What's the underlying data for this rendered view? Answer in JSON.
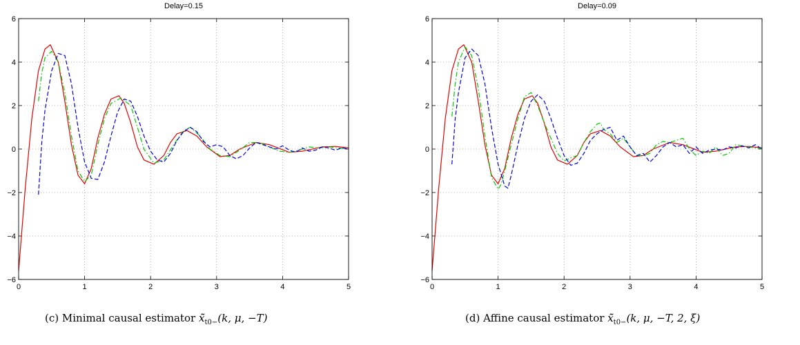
{
  "chart_data": [
    {
      "type": "line",
      "title": "Delay=0.15",
      "caption": {
        "label": "(c) Minimal causal estimator",
        "formula": "x̃̃",
        "subscript": "t0−",
        "args": "(k, μ, −T)"
      },
      "xlim": [
        0,
        5
      ],
      "ylim": [
        -6,
        6
      ],
      "xticks": [
        "0",
        "1",
        "2",
        "3",
        "4",
        "5"
      ],
      "yticks": [
        "−6",
        "−4",
        "−2",
        "0",
        "2",
        "4",
        "6"
      ],
      "grid": true,
      "series": [
        {
          "style": "solid",
          "color": "#e00000",
          "x": [
            0,
            0.1,
            0.2,
            0.3,
            0.4,
            0.48,
            0.6,
            0.7,
            0.8,
            0.9,
            1.0,
            1.1,
            1.2,
            1.3,
            1.4,
            1.52,
            1.6,
            1.7,
            1.8,
            1.9,
            2.05,
            2.2,
            2.3,
            2.4,
            2.55,
            2.7,
            2.85,
            3.05,
            3.2,
            3.35,
            3.6,
            3.8,
            4.1,
            4.3,
            4.6,
            4.8,
            5.0
          ],
          "y": [
            -5.6,
            -1.8,
            1.4,
            3.6,
            4.6,
            4.8,
            4.0,
            2.2,
            0.2,
            -1.2,
            -1.6,
            -0.9,
            0.5,
            1.6,
            2.3,
            2.45,
            2.1,
            1.2,
            0.1,
            -0.5,
            -0.7,
            -0.3,
            0.3,
            0.7,
            0.85,
            0.6,
            0.1,
            -0.35,
            -0.3,
            0.0,
            0.3,
            0.2,
            -0.15,
            -0.1,
            0.1,
            0.12,
            0.05
          ]
        },
        {
          "style": "dashdot",
          "color": "#00c800",
          "x": [
            0.3,
            0.35,
            0.4,
            0.5,
            0.6,
            0.7,
            0.8,
            0.9,
            1.0,
            1.1,
            1.2,
            1.3,
            1.4,
            1.55,
            1.7,
            1.8,
            1.9,
            2.05,
            2.2,
            2.35,
            2.5,
            2.6,
            2.75,
            2.9,
            3.05,
            3.2,
            3.35,
            3.5,
            3.65,
            3.8,
            3.95,
            4.1,
            4.25,
            4.4,
            4.55,
            4.7,
            4.85,
            5.0
          ],
          "y": [
            2.2,
            3.5,
            4.2,
            4.5,
            4.0,
            2.6,
            0.6,
            -1.0,
            -1.5,
            -1.2,
            0.2,
            1.4,
            2.1,
            2.35,
            2.0,
            1.0,
            0.0,
            -0.65,
            -0.5,
            0.2,
            0.85,
            1.0,
            0.6,
            0.0,
            -0.3,
            -0.35,
            -0.05,
            0.3,
            0.3,
            0.1,
            -0.1,
            -0.15,
            -0.05,
            0.1,
            0.05,
            0.1,
            0.05,
            0.0
          ]
        },
        {
          "style": "dashed",
          "color": "#0000e0",
          "x": [
            0.3,
            0.35,
            0.4,
            0.5,
            0.6,
            0.7,
            0.8,
            0.9,
            1.0,
            1.1,
            1.2,
            1.3,
            1.4,
            1.5,
            1.6,
            1.7,
            1.8,
            1.9,
            2.0,
            2.1,
            2.2,
            2.3,
            2.4,
            2.5,
            2.6,
            2.7,
            2.8,
            2.9,
            3.0,
            3.1,
            3.2,
            3.3,
            3.4,
            3.5,
            3.6,
            3.7,
            3.8,
            3.9,
            4.0,
            4.1,
            4.2,
            4.3,
            4.4,
            4.5,
            4.6,
            4.7,
            4.8,
            4.9,
            5.0
          ],
          "y": [
            -2.1,
            0.3,
            1.8,
            3.6,
            4.4,
            4.3,
            3.0,
            1.0,
            -0.6,
            -1.35,
            -1.4,
            -0.6,
            0.6,
            1.7,
            2.3,
            2.2,
            1.5,
            0.6,
            -0.1,
            -0.5,
            -0.6,
            -0.2,
            0.4,
            0.8,
            1.0,
            0.8,
            0.35,
            0.1,
            0.2,
            0.1,
            -0.3,
            -0.45,
            -0.3,
            0.05,
            0.3,
            0.2,
            0.1,
            0.0,
            0.15,
            -0.05,
            -0.15,
            0.05,
            -0.1,
            -0.05,
            0.1,
            0.05,
            -0.05,
            0.05,
            0.0
          ]
        }
      ]
    },
    {
      "type": "line",
      "title": "Delay=0.09",
      "caption": {
        "label": "(d) Affine causal estimator",
        "formula": "x̃̃",
        "subscript": "t0−",
        "args": "(k, μ, −T, 2, ξ)"
      },
      "xlim": [
        0,
        5
      ],
      "ylim": [
        -6,
        6
      ],
      "xticks": [
        "0",
        "1",
        "2",
        "3",
        "4",
        "5"
      ],
      "yticks": [
        "−6",
        "−4",
        "−2",
        "0",
        "2",
        "4",
        "6"
      ],
      "grid": true,
      "series": [
        {
          "style": "solid",
          "color": "#e00000",
          "x": [
            0,
            0.1,
            0.2,
            0.3,
            0.4,
            0.48,
            0.6,
            0.7,
            0.8,
            0.9,
            1.0,
            1.1,
            1.2,
            1.3,
            1.4,
            1.52,
            1.6,
            1.7,
            1.8,
            1.9,
            2.05,
            2.2,
            2.3,
            2.4,
            2.55,
            2.7,
            2.85,
            3.05,
            3.2,
            3.35,
            3.6,
            3.8,
            4.1,
            4.3,
            4.6,
            4.8,
            5.0
          ],
          "y": [
            -5.6,
            -1.8,
            1.4,
            3.6,
            4.6,
            4.8,
            4.0,
            2.2,
            0.2,
            -1.2,
            -1.6,
            -0.9,
            0.5,
            1.6,
            2.3,
            2.45,
            2.1,
            1.2,
            0.1,
            -0.5,
            -0.7,
            -0.3,
            0.3,
            0.7,
            0.85,
            0.6,
            0.1,
            -0.35,
            -0.3,
            0.0,
            0.3,
            0.2,
            -0.15,
            -0.1,
            0.1,
            0.12,
            0.05
          ]
        },
        {
          "style": "dashdot",
          "color": "#00c800",
          "x": [
            0.3,
            0.35,
            0.4,
            0.5,
            0.6,
            0.7,
            0.8,
            0.9,
            1.0,
            1.05,
            1.1,
            1.2,
            1.3,
            1.4,
            1.5,
            1.6,
            1.7,
            1.8,
            1.9,
            2.0,
            2.1,
            2.2,
            2.3,
            2.4,
            2.5,
            2.55,
            2.6,
            2.7,
            2.8,
            2.9,
            3.0,
            3.1,
            3.2,
            3.3,
            3.4,
            3.5,
            3.6,
            3.7,
            3.8,
            3.9,
            4.0,
            4.1,
            4.2,
            4.3,
            4.4,
            4.5,
            4.6,
            4.7,
            4.8,
            4.9,
            5.0
          ],
          "y": [
            1.5,
            3.0,
            4.0,
            4.7,
            4.3,
            2.8,
            0.6,
            -1.3,
            -1.85,
            -1.6,
            -1.0,
            0.2,
            1.4,
            2.4,
            2.6,
            2.0,
            1.2,
            0.5,
            -0.2,
            -0.55,
            -0.4,
            -0.3,
            0.3,
            0.8,
            1.15,
            1.2,
            0.9,
            0.7,
            0.3,
            0.5,
            0.1,
            -0.3,
            -0.3,
            -0.2,
            0.2,
            0.35,
            0.3,
            0.4,
            0.5,
            0.0,
            -0.3,
            -0.1,
            -0.2,
            0.1,
            -0.3,
            -0.2,
            0.2,
            0.15,
            0.1,
            0.05,
            0.0
          ]
        },
        {
          "style": "dashed",
          "color": "#0000e0",
          "x": [
            0.3,
            0.35,
            0.4,
            0.5,
            0.6,
            0.7,
            0.8,
            0.9,
            1.0,
            1.1,
            1.15,
            1.2,
            1.3,
            1.4,
            1.5,
            1.6,
            1.7,
            1.8,
            1.9,
            2.0,
            2.1,
            2.2,
            2.3,
            2.4,
            2.5,
            2.6,
            2.7,
            2.8,
            2.9,
            3.0,
            3.1,
            3.2,
            3.3,
            3.4,
            3.5,
            3.6,
            3.7,
            3.8,
            3.9,
            4.0,
            4.1,
            4.2,
            4.3,
            4.4,
            4.5,
            4.6,
            4.7,
            4.8,
            4.9,
            5.0
          ],
          "y": [
            -0.7,
            1.4,
            2.6,
            4.2,
            4.6,
            4.3,
            3.0,
            1.0,
            -0.7,
            -1.7,
            -1.8,
            -1.2,
            0.2,
            1.4,
            2.2,
            2.5,
            2.2,
            1.4,
            0.5,
            -0.3,
            -0.75,
            -0.65,
            -0.2,
            0.4,
            0.7,
            0.9,
            1.0,
            0.4,
            0.6,
            0.1,
            -0.3,
            -0.2,
            -0.6,
            -0.3,
            0.1,
            0.3,
            0.1,
            0.2,
            -0.2,
            0.1,
            -0.2,
            -0.05,
            0.0,
            -0.05,
            0.1,
            0.05,
            0.15,
            0.05,
            0.2,
            0.0
          ]
        }
      ]
    }
  ]
}
